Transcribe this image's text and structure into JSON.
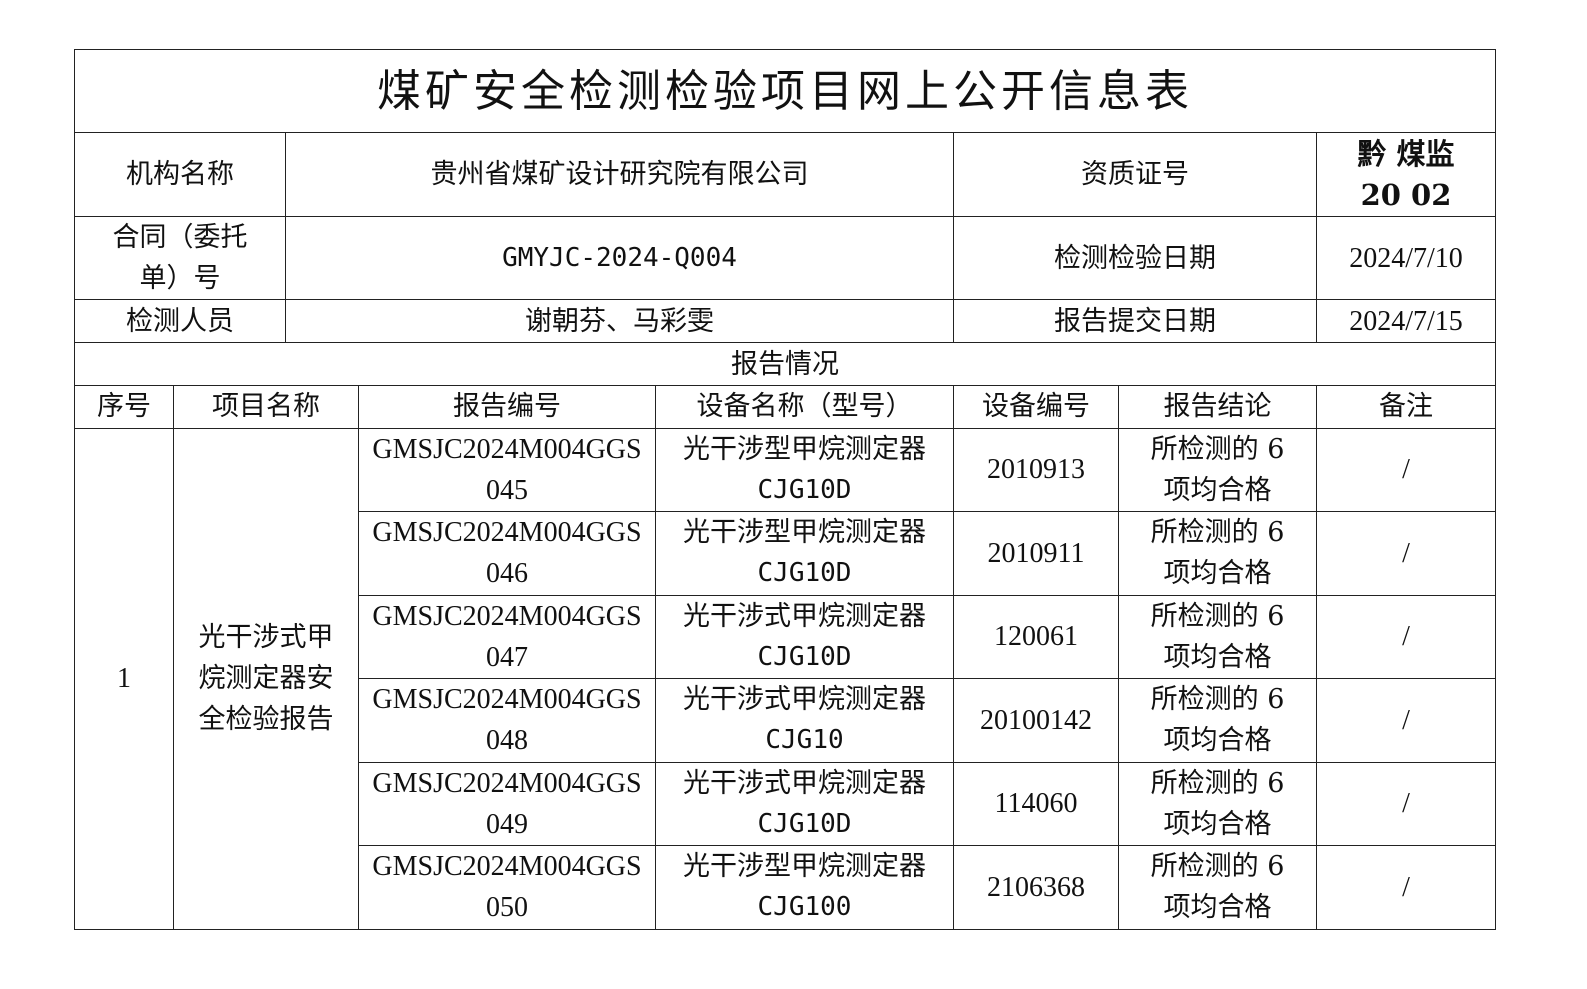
{
  "title": "煤矿安全检测检验项目网上公开信息表",
  "info": {
    "org_label": "机构名称",
    "org_value": "贵州省煤矿设计研究院有限公司",
    "cert_label": "资质证号",
    "cert_value_line1": "黔 煤监",
    "cert_value_line2": "20 02",
    "contract_label": "合同（委托单）号",
    "contract_value": "GMYJC-2024-Q004",
    "test_date_label": "检测检验日期",
    "test_date_value": "2024/7/10",
    "staff_label": "检测人员",
    "staff_value": "谢朝芬、马彩雯",
    "submit_date_label": "报告提交日期",
    "submit_date_value": "2024/7/15"
  },
  "report_section": "报告情况",
  "columns": [
    "序号",
    "项目名称",
    "报告编号",
    "设备名称（型号）",
    "设备编号",
    "报告结论",
    "备注"
  ],
  "group": {
    "index": "1",
    "project": "光干涉式甲烷测定器安全检验报告"
  },
  "rows": [
    {
      "report_no": "GMSJC2024M004GGS045",
      "device_name": "光干涉型甲烷测定器",
      "model": "CJG10D",
      "device_no": "2010913",
      "conclusion": "所检测的 6 项均合格",
      "remark": "/"
    },
    {
      "report_no": "GMSJC2024M004GGS046",
      "device_name": "光干涉型甲烷测定器",
      "model": "CJG10D",
      "device_no": "2010911",
      "conclusion": "所检测的 6 项均合格",
      "remark": "/"
    },
    {
      "report_no": "GMSJC2024M004GGS047",
      "device_name": "光干涉式甲烷测定器",
      "model": "CJG10D",
      "device_no": "120061",
      "conclusion": "所检测的 6 项均合格",
      "remark": "/"
    },
    {
      "report_no": "GMSJC2024M004GGS048",
      "device_name": "光干涉式甲烷测定器",
      "model": "CJG10",
      "device_no": "20100142",
      "conclusion": "所检测的 6 项均合格",
      "remark": "/"
    },
    {
      "report_no": "GMSJC2024M004GGS049",
      "device_name": "光干涉式甲烷测定器",
      "model": "CJG10D",
      "device_no": "114060",
      "conclusion": "所检测的 6 项均合格",
      "remark": "/"
    },
    {
      "report_no": "GMSJC2024M004GGS050",
      "device_name": "光干涉型甲烷测定器",
      "model": "CJG100",
      "device_no": "2106368",
      "conclusion": "所检测的 6 项均合格",
      "remark": "/"
    }
  ]
}
